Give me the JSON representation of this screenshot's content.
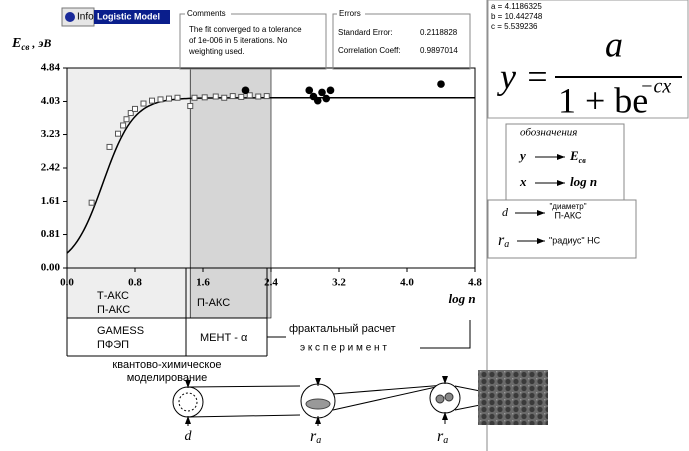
{
  "toolbar": {
    "info": "Info",
    "model": "Logistic Model"
  },
  "comments": {
    "title": "Comments",
    "lines": [
      "The fit converged to a tolerance",
      "of 1e-006 in 5 iterations. No",
      "weighting used."
    ]
  },
  "errors": {
    "title": "Errors",
    "rows": [
      {
        "label": "Standard Error:",
        "value": 0.2118828
      },
      {
        "label": "Correlation Coeff:",
        "value": 0.9897014
      }
    ]
  },
  "formula": {
    "lhs": "y =",
    "numerator": "a",
    "denominator": "1 + be",
    "exponent": "−cx"
  },
  "legend": {
    "title": "обозначения",
    "rows": [
      {
        "symbol": "y",
        "target": "E",
        "target_sub": "св"
      },
      {
        "symbol": "x",
        "target": "log n"
      }
    ],
    "d": {
      "symbol": "d",
      "text": [
        "\"диаметр\"",
        "П-АКС"
      ]
    },
    "r": {
      "symbol": "r",
      "sub": "a",
      "text": "\"радиус\" НС"
    }
  },
  "table": {
    "row1": [
      "Т-АКС",
      "П-АКС",
      "П-АКС"
    ],
    "row2": [
      "GAMESS",
      "ПФЭП",
      "МЕНТ - α"
    ],
    "fractal": "фрактальный расчет",
    "experiment": "э к с п е р и м е н т",
    "quantum": [
      "квантово-химическое",
      "моделирование"
    ]
  },
  "diagram": {
    "labels": [
      {
        "symbol": "d"
      },
      {
        "symbol": "r",
        "sub": "a"
      },
      {
        "symbol": "r",
        "sub": "a"
      }
    ]
  },
  "chart_data": {
    "type": "scatter",
    "y_label": {
      "main": "E",
      "sub": "св",
      "unit": " , эВ"
    },
    "x_label": "log n",
    "xlim": [
      0,
      4.8
    ],
    "ylim": [
      0,
      4.84
    ],
    "xticks": [
      {
        "value": 0,
        "label": "0.0"
      },
      0.8,
      1.6,
      2.4,
      3.2,
      {
        "value": 4,
        "label": "4.0"
      },
      4.8
    ],
    "yticks": [
      {
        "value": 0,
        "label": "0.00"
      },
      0.81,
      1.61,
      2.42,
      3.23,
      4.03,
      4.84
    ],
    "shaded": [
      {
        "x": [
          0,
          1.45
        ],
        "color": "#eeeeee"
      },
      {
        "x": [
          1.45,
          2.4
        ],
        "color": "#d6d6d6"
      }
    ],
    "fit": {
      "color": "#000000",
      "params": [
        {
          "label": "a = 4.1186325",
          "value": 4.1186325
        },
        {
          "label": "b = 10.442748",
          "value": 10.442748
        },
        {
          "label": "c = 5.539236",
          "value": 5.539236
        }
      ]
    },
    "series": [
      {
        "marker": "square",
        "color": "#555555",
        "x": [
          0.29,
          0.5,
          0.6,
          0.66,
          0.7,
          0.75,
          0.8,
          0.9,
          1.0,
          1.1,
          1.2,
          1.3,
          1.45,
          1.5,
          1.62,
          1.75,
          1.85,
          1.95,
          2.05,
          2.15,
          2.25,
          2.35
        ],
        "values": [
          1.58,
          2.93,
          3.25,
          3.45,
          3.6,
          3.75,
          3.85,
          3.98,
          4.05,
          4.08,
          4.1,
          4.12,
          3.92,
          4.12,
          4.13,
          4.15,
          4.12,
          4.16,
          4.14,
          4.18,
          4.15,
          4.16
        ]
      },
      {
        "marker": "circle",
        "color": "#000000",
        "x": [
          2.1,
          2.85,
          2.9,
          2.95,
          3.0,
          3.05,
          3.1,
          4.4
        ],
        "values": [
          4.3,
          4.3,
          4.15,
          4.05,
          4.25,
          4.1,
          4.3,
          4.45
        ]
      }
    ]
  }
}
